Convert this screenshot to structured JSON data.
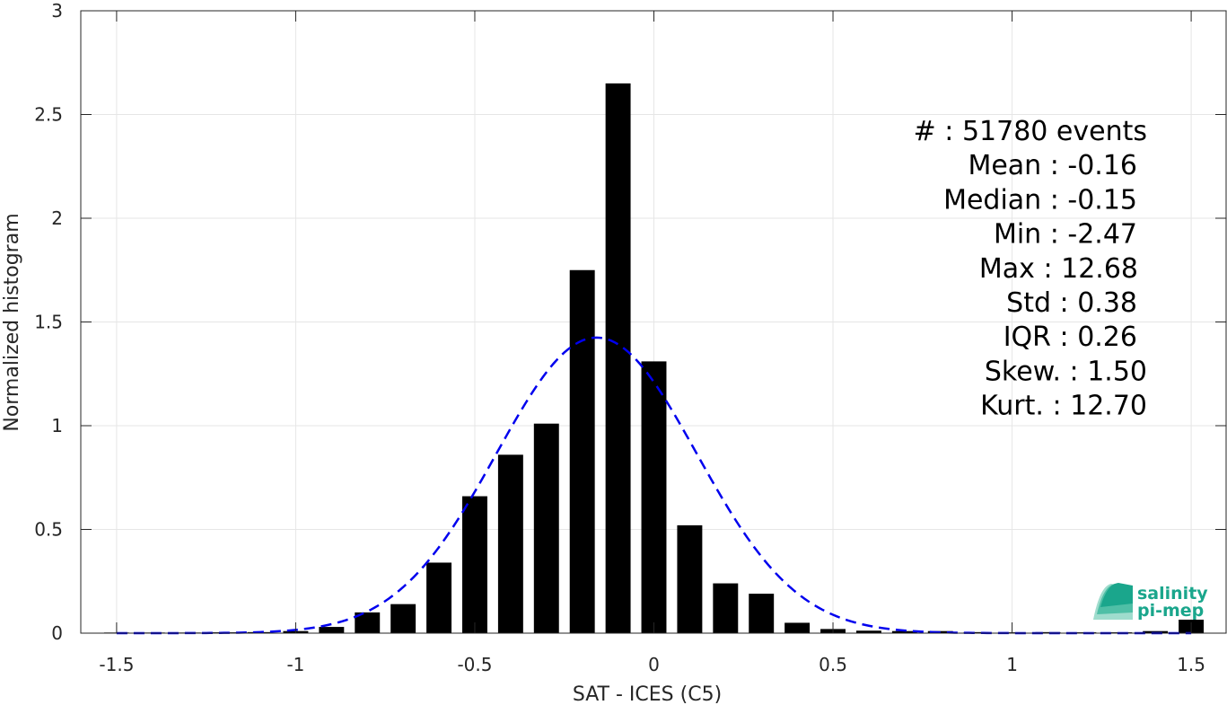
{
  "chart_data": {
    "type": "bar",
    "xlabel": "SAT - ICES (C5)",
    "ylabel": "Normalized histogram",
    "xlim": [
      -1.6,
      1.6
    ],
    "ylim": [
      0,
      3
    ],
    "xticks": [
      -1.5,
      -1,
      -0.5,
      0,
      0.5,
      1,
      1.5
    ],
    "xtick_labels": [
      "-1.5",
      "-1",
      "-0.5",
      "0",
      "0.5",
      "1",
      "1.5"
    ],
    "yticks": [
      0,
      0.5,
      1,
      1.5,
      2,
      2.5,
      3
    ],
    "ytick_labels": [
      "0",
      "0.5",
      "1",
      "1.5",
      "2",
      "2.5",
      "3"
    ],
    "grid": true,
    "bar_width": 0.07,
    "bins": [
      {
        "x": -1.5,
        "y": 0.003
      },
      {
        "x": -1.4,
        "y": 0.003
      },
      {
        "x": -1.3,
        "y": 0.003
      },
      {
        "x": -1.2,
        "y": 0.004
      },
      {
        "x": -1.1,
        "y": 0.005
      },
      {
        "x": -1.0,
        "y": 0.01
      },
      {
        "x": -0.9,
        "y": 0.03
      },
      {
        "x": -0.8,
        "y": 0.1
      },
      {
        "x": -0.7,
        "y": 0.14
      },
      {
        "x": -0.6,
        "y": 0.34
      },
      {
        "x": -0.5,
        "y": 0.66
      },
      {
        "x": -0.4,
        "y": 0.86
      },
      {
        "x": -0.3,
        "y": 1.01
      },
      {
        "x": -0.2,
        "y": 1.75
      },
      {
        "x": -0.1,
        "y": 2.65
      },
      {
        "x": 0.0,
        "y": 1.31
      },
      {
        "x": 0.1,
        "y": 0.52
      },
      {
        "x": 0.2,
        "y": 0.24
      },
      {
        "x": 0.3,
        "y": 0.19
      },
      {
        "x": 0.4,
        "y": 0.05
      },
      {
        "x": 0.5,
        "y": 0.02
      },
      {
        "x": 0.6,
        "y": 0.012
      },
      {
        "x": 0.7,
        "y": 0.01
      },
      {
        "x": 0.8,
        "y": 0.01
      },
      {
        "x": 0.9,
        "y": 0.005
      },
      {
        "x": 1.0,
        "y": 0.004
      },
      {
        "x": 1.1,
        "y": 0.005
      },
      {
        "x": 1.2,
        "y": 0.004
      },
      {
        "x": 1.3,
        "y": 0.004
      },
      {
        "x": 1.4,
        "y": 0.01
      },
      {
        "x": 1.5,
        "y": 0.065
      }
    ],
    "fit_curve": {
      "style": "dashed",
      "color": "#0000ee",
      "mean": -0.16,
      "std": 0.28,
      "x_range": [
        -1.5,
        1.5
      ]
    },
    "stats": [
      {
        "label": "#  : 51780 events"
      },
      {
        "label": "Mean : -0.16"
      },
      {
        "label": "Median : -0.15"
      },
      {
        "label": "Min : -2.47"
      },
      {
        "label": "Max : 12.68"
      },
      {
        "label": "Std : 0.38"
      },
      {
        "label": "IQR : 0.26"
      },
      {
        "label": "Skew. : 1.50"
      },
      {
        "label": "Kurt. : 12.70"
      }
    ]
  },
  "logo": {
    "line1": "salinity",
    "line2": "pi-mep"
  }
}
